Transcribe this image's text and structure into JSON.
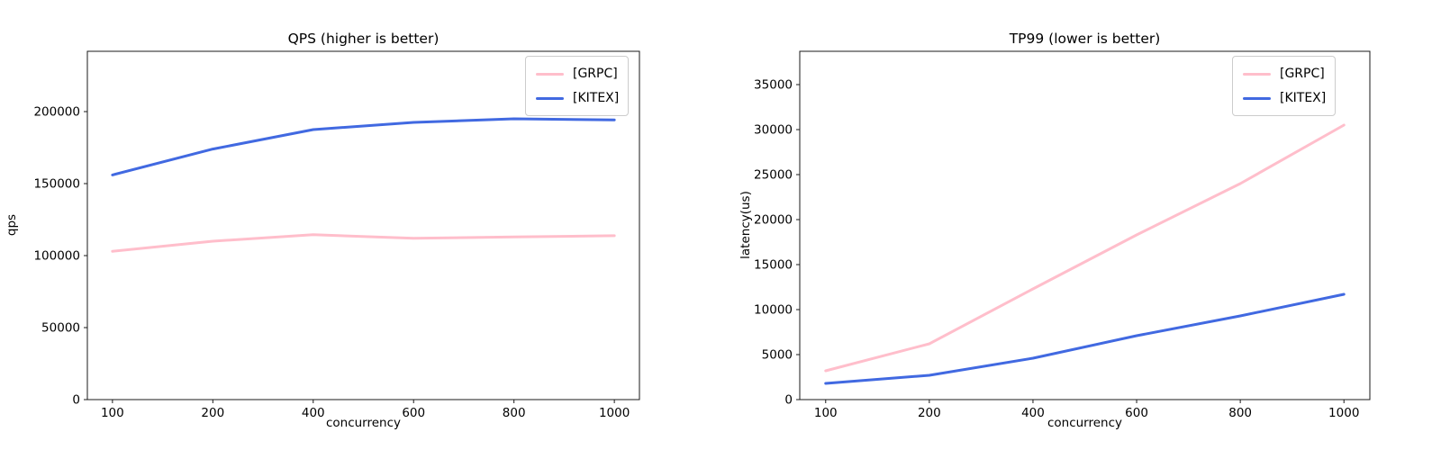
{
  "figure": {
    "background": "#ffffff",
    "grpc_color": "#ffbecb",
    "kitex_color": "#4169e1"
  },
  "chart_data": [
    {
      "type": "line",
      "title": "QPS (higher is better)",
      "xlabel": "concurrency",
      "ylabel": "qps",
      "categories": [
        "100",
        "200",
        "400",
        "600",
        "800",
        "1000"
      ],
      "series": [
        {
          "name": "[GRPC]",
          "color": "#ffbecb",
          "values": [
            103000,
            110000,
            114500,
            112000,
            113000,
            113800
          ]
        },
        {
          "name": "[KITEX]",
          "color": "#4169e1",
          "values": [
            156000,
            174000,
            187500,
            192500,
            195000,
            194200
          ]
        }
      ],
      "ylim": [
        0,
        241875
      ],
      "yticks": [
        0,
        50000,
        100000,
        150000,
        200000
      ],
      "grid": false,
      "legend_position": "upper right"
    },
    {
      "type": "line",
      "title": "TP99 (lower is better)",
      "xlabel": "concurrency",
      "ylabel": "latency(us)",
      "categories": [
        "100",
        "200",
        "400",
        "600",
        "800",
        "1000"
      ],
      "series": [
        {
          "name": "[GRPC]",
          "color": "#ffbecb",
          "values": [
            3200,
            6200,
            12300,
            18300,
            24000,
            30500
          ]
        },
        {
          "name": "[KITEX]",
          "color": "#4169e1",
          "values": [
            1800,
            2700,
            4600,
            7100,
            9300,
            11700
          ]
        }
      ],
      "ylim": [
        0,
        38700
      ],
      "yticks": [
        0,
        5000,
        10000,
        15000,
        20000,
        25000,
        30000,
        35000
      ],
      "grid": false,
      "legend_position": "upper right"
    }
  ]
}
